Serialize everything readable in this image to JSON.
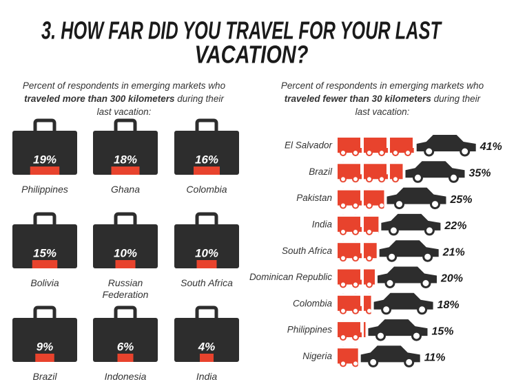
{
  "title": [
    "3. HOW FAR DID YOU TRAVEL FOR YOUR LAST",
    "VACATION?"
  ],
  "chart_data": [
    {
      "type": "pictogram",
      "subtitle": [
        "Percent of respondents in emerging markets who ",
        "traveled more than 300 kilometers",
        " during their last vacation:"
      ],
      "categories": [
        "Philippines",
        "Ghana",
        "Colombia",
        "Bolivia",
        "Russian Federation",
        "South Africa",
        "Brazil",
        "Indonesia",
        "India"
      ],
      "values": [
        19,
        18,
        16,
        15,
        10,
        10,
        9,
        6,
        4
      ],
      "value_labels": [
        "19%",
        "18%",
        "16%",
        "15%",
        "10%",
        "10%",
        "9%",
        "6%",
        "4%"
      ],
      "color": "#e8432d",
      "icon_color": "#2d2d2d"
    },
    {
      "type": "bar",
      "subtitle": [
        "Percent of respondents in emerging markets who ",
        "traveled fewer than 30 kilometers",
        " during their last vacation:"
      ],
      "categories": [
        "El Salvador",
        "Brazil",
        "Pakistan",
        "India",
        "South Africa",
        "Dominican Republic",
        "Colombia",
        "Philippines",
        "Nigeria"
      ],
      "values": [
        41,
        35,
        25,
        22,
        21,
        20,
        18,
        15,
        11
      ],
      "value_labels": [
        "41%",
        "35%",
        "25%",
        "22%",
        "21%",
        "20%",
        "18%",
        "15%",
        "11%"
      ],
      "color": "#e8432d",
      "icon_color": "#2d2d2d"
    }
  ]
}
